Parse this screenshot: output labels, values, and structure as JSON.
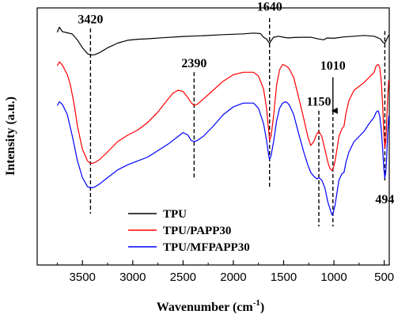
{
  "chart_data": {
    "type": "line",
    "xlabel_main": "Wavenumber (cm",
    "xlabel_sup": "-1",
    "xlabel_end": ")",
    "ylabel": "Intensity (a.u.)",
    "x_reversed": true,
    "xlim": [
      3950,
      450
    ],
    "ylim": [
      0,
      100
    ],
    "x_ticks": [
      3500,
      3000,
      2500,
      2000,
      1500,
      1000,
      500
    ],
    "x_tick_labels": [
      "3500",
      "3000",
      "2500",
      "2000",
      "1500",
      "1000",
      "500"
    ],
    "y_ticks_shown": false,
    "grid": false,
    "legend_placement": "bottom-center",
    "series": [
      {
        "name": "TPU",
        "color": "#000000",
        "points": [
          [
            3750,
            90.5
          ],
          [
            3730,
            92.5
          ],
          [
            3700,
            90.8
          ],
          [
            3650,
            90.3
          ],
          [
            3600,
            89.8
          ],
          [
            3550,
            87.5
          ],
          [
            3500,
            84.5
          ],
          [
            3450,
            82.2
          ],
          [
            3420,
            81.7
          ],
          [
            3380,
            81.8
          ],
          [
            3330,
            82.6
          ],
          [
            3250,
            84.5
          ],
          [
            3150,
            86.3
          ],
          [
            3050,
            87.4
          ],
          [
            2950,
            87.8
          ],
          [
            2850,
            88.0
          ],
          [
            2700,
            88.4
          ],
          [
            2500,
            88.9
          ],
          [
            2300,
            89.2
          ],
          [
            2100,
            89.6
          ],
          [
            1900,
            89.9
          ],
          [
            1800,
            90.2
          ],
          [
            1730,
            90.0
          ],
          [
            1700,
            88.6
          ],
          [
            1670,
            87.9
          ],
          [
            1650,
            86.7
          ],
          [
            1640,
            86.3
          ],
          [
            1625,
            87.2
          ],
          [
            1600,
            88.6
          ],
          [
            1550,
            89.0
          ],
          [
            1500,
            88.6
          ],
          [
            1450,
            88.3
          ],
          [
            1400,
            88.5
          ],
          [
            1300,
            88.6
          ],
          [
            1230,
            88.6
          ],
          [
            1150,
            87.9
          ],
          [
            1100,
            87.6
          ],
          [
            1070,
            88.3
          ],
          [
            1000,
            88.2
          ],
          [
            900,
            88.7
          ],
          [
            800,
            89.0
          ],
          [
            700,
            89.3
          ],
          [
            600,
            89.0
          ],
          [
            540,
            88.0
          ],
          [
            510,
            86.5
          ],
          [
            494,
            86.2
          ],
          [
            470,
            88.2
          ],
          [
            455,
            89.5
          ]
        ]
      },
      {
        "name": "TPU/PAPP30",
        "color": "#ff0000",
        "points": [
          [
            3750,
            77.5
          ],
          [
            3730,
            79.0
          ],
          [
            3700,
            77.8
          ],
          [
            3650,
            74.0
          ],
          [
            3620,
            70.0
          ],
          [
            3580,
            62.0
          ],
          [
            3550,
            54.0
          ],
          [
            3500,
            45.0
          ],
          [
            3450,
            40.5
          ],
          [
            3420,
            39.5
          ],
          [
            3380,
            39.8
          ],
          [
            3330,
            41.0
          ],
          [
            3250,
            44.0
          ],
          [
            3150,
            48.0
          ],
          [
            3050,
            50.5
          ],
          [
            2950,
            52.5
          ],
          [
            2850,
            55.5
          ],
          [
            2750,
            59.5
          ],
          [
            2650,
            64.5
          ],
          [
            2600,
            66.8
          ],
          [
            2550,
            68.0
          ],
          [
            2500,
            67.5
          ],
          [
            2450,
            65.0
          ],
          [
            2420,
            63.2
          ],
          [
            2390,
            62.0
          ],
          [
            2360,
            62.5
          ],
          [
            2300,
            64.5
          ],
          [
            2200,
            68.0
          ],
          [
            2100,
            71.5
          ],
          [
            2000,
            74.0
          ],
          [
            1900,
            75.0
          ],
          [
            1800,
            75.0
          ],
          [
            1750,
            73.5
          ],
          [
            1700,
            68.5
          ],
          [
            1670,
            61.0
          ],
          [
            1650,
            53.0
          ],
          [
            1640,
            48.5
          ],
          [
            1625,
            50.0
          ],
          [
            1600,
            58.0
          ],
          [
            1570,
            70.0
          ],
          [
            1540,
            76.0
          ],
          [
            1510,
            78.0
          ],
          [
            1480,
            77.5
          ],
          [
            1460,
            77.0
          ],
          [
            1440,
            76.0
          ],
          [
            1400,
            73.0
          ],
          [
            1350,
            65.0
          ],
          [
            1300,
            57.0
          ],
          [
            1260,
            50.0
          ],
          [
            1230,
            46.5
          ],
          [
            1200,
            48.0
          ],
          [
            1170,
            51.0
          ],
          [
            1150,
            52.0
          ],
          [
            1120,
            50.0
          ],
          [
            1090,
            45.0
          ],
          [
            1060,
            40.0
          ],
          [
            1040,
            37.5
          ],
          [
            1020,
            36.8
          ],
          [
            1010,
            37.2
          ],
          [
            990,
            40.0
          ],
          [
            970,
            45.0
          ],
          [
            950,
            50.0
          ],
          [
            920,
            53.0
          ],
          [
            900,
            54.0
          ],
          [
            880,
            59.0
          ],
          [
            850,
            64.0
          ],
          [
            800,
            68.0
          ],
          [
            750,
            69.5
          ],
          [
            700,
            71.0
          ],
          [
            650,
            73.0
          ],
          [
            600,
            75.0
          ],
          [
            580,
            77.5
          ],
          [
            560,
            78.0
          ],
          [
            545,
            77.0
          ],
          [
            530,
            72.0
          ],
          [
            515,
            62.0
          ],
          [
            505,
            52.0
          ],
          [
            494,
            45.5
          ],
          [
            485,
            48.0
          ],
          [
            475,
            56.0
          ],
          [
            465,
            66.0
          ],
          [
            455,
            72.0
          ]
        ]
      },
      {
        "name": "TPU/MFPAPP30",
        "color": "#0000ff",
        "points": [
          [
            3750,
            62.0
          ],
          [
            3730,
            63.5
          ],
          [
            3700,
            62.5
          ],
          [
            3650,
            58.5
          ],
          [
            3600,
            50.0
          ],
          [
            3550,
            40.5
          ],
          [
            3500,
            34.0
          ],
          [
            3450,
            30.5
          ],
          [
            3420,
            30.0
          ],
          [
            3380,
            30.3
          ],
          [
            3330,
            31.5
          ],
          [
            3250,
            34.0
          ],
          [
            3150,
            37.0
          ],
          [
            3050,
            39.0
          ],
          [
            2950,
            40.5
          ],
          [
            2850,
            42.0
          ],
          [
            2750,
            44.5
          ],
          [
            2650,
            47.0
          ],
          [
            2550,
            50.0
          ],
          [
            2500,
            51.5
          ],
          [
            2450,
            50.5
          ],
          [
            2420,
            48.5
          ],
          [
            2390,
            48.0
          ],
          [
            2360,
            48.4
          ],
          [
            2300,
            50.0
          ],
          [
            2200,
            54.0
          ],
          [
            2100,
            58.5
          ],
          [
            2000,
            61.5
          ],
          [
            1900,
            63.0
          ],
          [
            1800,
            63.0
          ],
          [
            1750,
            61.0
          ],
          [
            1700,
            55.0
          ],
          [
            1670,
            48.5
          ],
          [
            1650,
            43.0
          ],
          [
            1640,
            41.0
          ],
          [
            1625,
            42.5
          ],
          [
            1600,
            48.0
          ],
          [
            1570,
            56.0
          ],
          [
            1540,
            61.0
          ],
          [
            1510,
            63.0
          ],
          [
            1480,
            63.5
          ],
          [
            1460,
            63.0
          ],
          [
            1440,
            62.0
          ],
          [
            1400,
            58.5
          ],
          [
            1350,
            51.0
          ],
          [
            1300,
            44.0
          ],
          [
            1260,
            39.0
          ],
          [
            1230,
            36.0
          ],
          [
            1200,
            34.5
          ],
          [
            1170,
            33.5
          ],
          [
            1150,
            34.0
          ],
          [
            1120,
            33.0
          ],
          [
            1090,
            30.0
          ],
          [
            1060,
            24.5
          ],
          [
            1040,
            22.0
          ],
          [
            1020,
            19.5
          ],
          [
            1010,
            19.8
          ],
          [
            990,
            23.0
          ],
          [
            970,
            28.0
          ],
          [
            950,
            33.0
          ],
          [
            920,
            35.5
          ],
          [
            900,
            36.0
          ],
          [
            880,
            40.0
          ],
          [
            850,
            44.0
          ],
          [
            800,
            48.0
          ],
          [
            750,
            50.0
          ],
          [
            700,
            52.0
          ],
          [
            650,
            55.0
          ],
          [
            600,
            57.5
          ],
          [
            580,
            59.5
          ],
          [
            560,
            60.0
          ],
          [
            545,
            58.0
          ],
          [
            530,
            53.0
          ],
          [
            515,
            45.0
          ],
          [
            505,
            38.0
          ],
          [
            494,
            34.0
          ],
          [
            485,
            36.0
          ],
          [
            475,
            42.0
          ],
          [
            465,
            52.0
          ],
          [
            455,
            58.0
          ]
        ]
      }
    ],
    "annotations": [
      {
        "label": "3420",
        "x": 3420,
        "y_top": 92,
        "y_bottom": 20,
        "label_pos": "above",
        "label_y": 94
      },
      {
        "label": "1640",
        "x": 1640,
        "y_top": 96,
        "y_bottom": 30,
        "label_pos": "above",
        "label_y": 99
      },
      {
        "label": "2390",
        "x": 2390,
        "y_top": 75,
        "y_bottom": 34,
        "label_pos": "above",
        "label_y": 77
      },
      {
        "label": "1150",
        "x": 1150,
        "y_top": 60,
        "y_bottom": 15,
        "label_pos": "above",
        "label_y": 62
      },
      {
        "label": "1010",
        "x": 1010,
        "y_top": 73,
        "y_bottom": 15,
        "label_pos": "above",
        "label_y": 76,
        "arrow": true
      },
      {
        "label": "494",
        "x": 494,
        "y_top": 91,
        "y_bottom": 32,
        "label_pos": "below",
        "label_y": 24
      }
    ]
  }
}
